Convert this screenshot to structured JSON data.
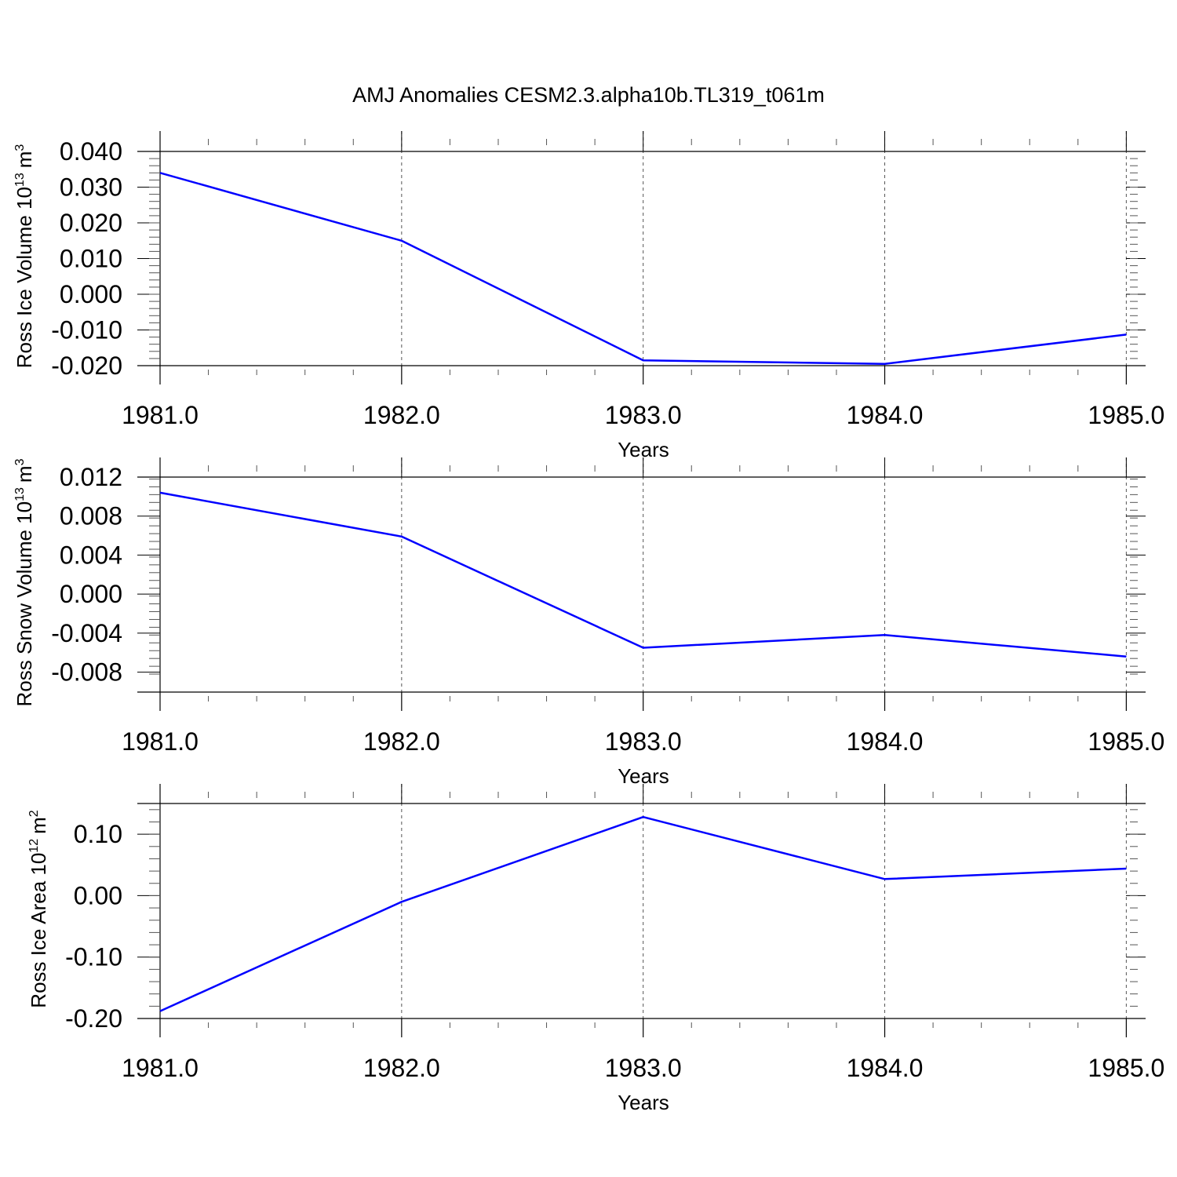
{
  "figure": {
    "title": "AMJ Anomalies CESM2.3.alpha10b.TL319_t061m",
    "line_color": "#0000ff",
    "grid_color": "#000000"
  },
  "chart_data": [
    {
      "type": "line",
      "title": "",
      "xlabel": "Years",
      "ylabel": {
        "text": "Ross Ice Volume 10",
        "exponent": "13",
        "unit": "m",
        "unit_exponent": "3"
      },
      "x": [
        1981,
        1982,
        1983,
        1984,
        1985
      ],
      "x_ticks": [
        "1981.0",
        "1982.0",
        "1983.0",
        "1984.0",
        "1985.0"
      ],
      "xlim": [
        1981,
        1985.08
      ],
      "ylim": [
        -0.02,
        0.04
      ],
      "y_ticks": [
        "0.040",
        "0.030",
        "0.020",
        "0.010",
        "0.000",
        "-0.010",
        "-0.020"
      ],
      "y_tick_values": [
        0.04,
        0.03,
        0.02,
        0.01,
        0.0,
        -0.01,
        -0.02
      ],
      "grid": "x-dashed",
      "series": [
        {
          "values": [
            0.034,
            0.015,
            -0.0185,
            -0.0195,
            -0.0113
          ]
        }
      ]
    },
    {
      "type": "line",
      "title": "",
      "xlabel": "Years",
      "ylabel": {
        "text": "Ross Snow Volume 10",
        "exponent": "13",
        "unit": "m",
        "unit_exponent": "3"
      },
      "x": [
        1981,
        1982,
        1983,
        1984,
        1985
      ],
      "x_ticks": [
        "1981.0",
        "1982.0",
        "1983.0",
        "1984.0",
        "1985.0"
      ],
      "xlim": [
        1981,
        1985.08
      ],
      "ylim": [
        -0.009,
        0.012
      ],
      "y_ticks": [
        "0.012",
        "0.008",
        "0.004",
        "0.000",
        "-0.004",
        "-0.008"
      ],
      "y_tick_values": [
        0.012,
        0.008,
        0.004,
        0.0,
        -0.004,
        -0.008
      ],
      "grid": "x-dashed",
      "series": [
        {
          "values": [
            0.0104,
            0.0059,
            -0.0055,
            -0.0042,
            -0.0064
          ]
        }
      ]
    },
    {
      "type": "line",
      "title": "",
      "xlabel": "Years",
      "ylabel": {
        "text": "Ross Ice Area 10",
        "exponent": "12",
        "unit": "m",
        "unit_exponent": "2"
      },
      "x": [
        1981,
        1982,
        1983,
        1984,
        1985
      ],
      "x_ticks": [
        "1981.0",
        "1982.0",
        "1983.0",
        "1984.0",
        "1985.0"
      ],
      "xlim": [
        1981,
        1985.08
      ],
      "ylim": [
        -0.2,
        0.15
      ],
      "y_ticks": [
        "0.10",
        "0.00",
        "-0.10",
        "-0.20"
      ],
      "y_tick_values": [
        0.1,
        0.0,
        -0.1,
        -0.2
      ],
      "grid": "x-dashed",
      "series": [
        {
          "values": [
            -0.188,
            -0.01,
            0.128,
            0.027,
            0.044
          ]
        }
      ]
    }
  ]
}
